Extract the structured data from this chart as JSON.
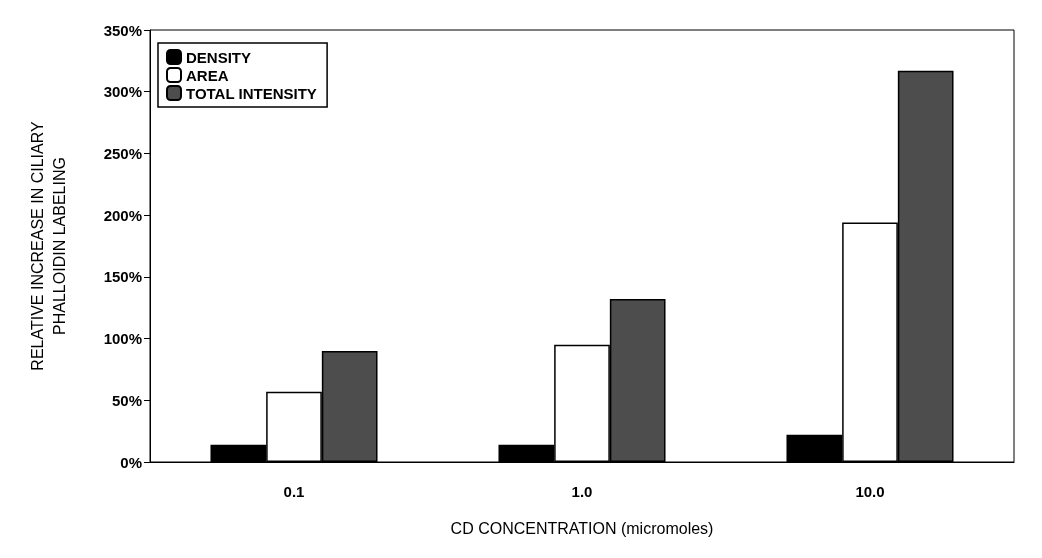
{
  "chart_data": {
    "type": "bar",
    "xlabel": "CD CONCENTRATION (micromoles)",
    "ylabel": "RELATIVE INCREASE IN CILIARY\nPHALLOIDIN LABELING",
    "categories": [
      "0.1",
      "1.0",
      "10.0"
    ],
    "series": [
      {
        "name": "DENSITY",
        "color": "#000000",
        "values": [
          14,
          14,
          22
        ]
      },
      {
        "name": "AREA",
        "color": "#ffffff",
        "values": [
          57,
          95,
          194
        ]
      },
      {
        "name": "TOTAL INTENSITY",
        "color": "#4d4d4d",
        "values": [
          90,
          132,
          317
        ]
      }
    ],
    "ylim": [
      0,
      350
    ],
    "yticks": [
      {
        "value": 0,
        "label": "0%"
      },
      {
        "value": 50,
        "label": "50%"
      },
      {
        "value": 100,
        "label": "100%"
      },
      {
        "value": 150,
        "label": "150%"
      },
      {
        "value": 200,
        "label": "200%"
      },
      {
        "value": 250,
        "label": "250%"
      },
      {
        "value": 300,
        "label": "300%"
      },
      {
        "value": 350,
        "label": "350%"
      }
    ],
    "grid": false,
    "legend": "top left"
  }
}
